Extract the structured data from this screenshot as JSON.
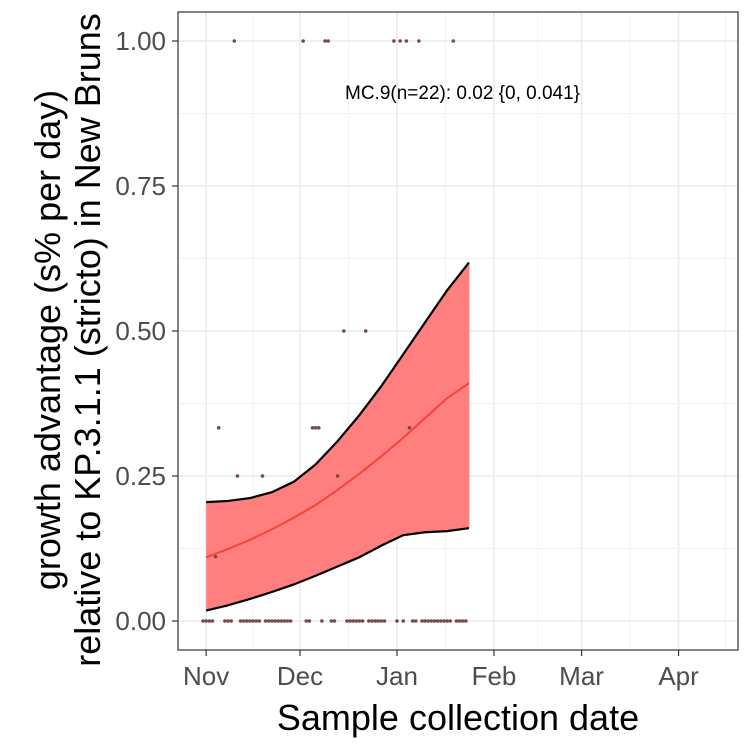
{
  "chart_data": {
    "type": "line",
    "title": "",
    "xlabel": "Sample collection date",
    "ylabel": "growth advantage (s% per day)",
    "ylabel_line2": "relative to KP.3.1.1 (stricto) in New Bruns",
    "x_ticks": [
      "Nov",
      "Dec",
      "Jan",
      "Feb",
      "Mar",
      "Apr"
    ],
    "y_ticks": [
      "0.00",
      "0.25",
      "0.50",
      "0.75",
      "1.00"
    ],
    "y_tick_values": [
      0,
      0.25,
      0.5,
      0.75,
      1.0
    ],
    "xlim": [
      "2024-10-23",
      "2025-04-20"
    ],
    "ylim": [
      -0.05,
      1.05
    ],
    "grid": true,
    "annotation": "MC.9(n=22): 0.02 {0, 0.041}",
    "series": [
      {
        "name": "MC.9",
        "color": "#f8766d",
        "x": [
          "2024-11-01",
          "2024-11-08",
          "2024-11-15",
          "2024-11-22",
          "2024-11-29",
          "2024-12-06",
          "2024-12-13",
          "2024-12-20",
          "2024-12-27",
          "2025-01-03",
          "2025-01-10",
          "2025-01-17",
          "2025-01-24"
        ],
        "fit": [
          0.11,
          0.124,
          0.14,
          0.158,
          0.178,
          0.2,
          0.226,
          0.254,
          0.284,
          0.316,
          0.35,
          0.384,
          0.41
        ],
        "lower": [
          0.018,
          0.027,
          0.038,
          0.05,
          0.063,
          0.078,
          0.094,
          0.11,
          0.13,
          0.148,
          0.153,
          0.155,
          0.16
        ],
        "upper": [
          0.205,
          0.207,
          0.212,
          0.222,
          0.24,
          0.27,
          0.31,
          0.355,
          0.405,
          0.46,
          0.515,
          0.57,
          0.618
        ]
      }
    ],
    "points": {
      "color": "#7a4a4a",
      "values": [
        {
          "x": "2024-11-10",
          "y": 1.0
        },
        {
          "x": "2024-12-02",
          "y": 1.0
        },
        {
          "x": "2024-12-09",
          "y": 1.0
        },
        {
          "x": "2024-12-10",
          "y": 1.0
        },
        {
          "x": "2024-12-31",
          "y": 1.0
        },
        {
          "x": "2025-01-02",
          "y": 1.0
        },
        {
          "x": "2025-01-04",
          "y": 1.0
        },
        {
          "x": "2025-01-08",
          "y": 1.0
        },
        {
          "x": "2025-01-19",
          "y": 1.0
        },
        {
          "x": "2024-12-15",
          "y": 0.5
        },
        {
          "x": "2024-12-22",
          "y": 0.5
        },
        {
          "x": "2024-11-05",
          "y": 0.333
        },
        {
          "x": "2024-12-05",
          "y": 0.333
        },
        {
          "x": "2024-12-06",
          "y": 0.333
        },
        {
          "x": "2024-12-07",
          "y": 0.333
        },
        {
          "x": "2025-01-05",
          "y": 0.333
        },
        {
          "x": "2024-11-11",
          "y": 0.25
        },
        {
          "x": "2024-11-19",
          "y": 0.25
        },
        {
          "x": "2024-12-13",
          "y": 0.25
        },
        {
          "x": "2024-11-04",
          "y": 0.111
        },
        {
          "x": "2024-10-31",
          "y": 0
        },
        {
          "x": "2024-11-01",
          "y": 0
        },
        {
          "x": "2024-11-02",
          "y": 0
        },
        {
          "x": "2024-11-03",
          "y": 0
        },
        {
          "x": "2024-11-07",
          "y": 0
        },
        {
          "x": "2024-11-08",
          "y": 0
        },
        {
          "x": "2024-11-09",
          "y": 0
        },
        {
          "x": "2024-11-12",
          "y": 0
        },
        {
          "x": "2024-11-13",
          "y": 0
        },
        {
          "x": "2024-11-14",
          "y": 0
        },
        {
          "x": "2024-11-15",
          "y": 0
        },
        {
          "x": "2024-11-16",
          "y": 0
        },
        {
          "x": "2024-11-17",
          "y": 0
        },
        {
          "x": "2024-11-18",
          "y": 0
        },
        {
          "x": "2024-11-20",
          "y": 0
        },
        {
          "x": "2024-11-21",
          "y": 0
        },
        {
          "x": "2024-11-22",
          "y": 0
        },
        {
          "x": "2024-11-23",
          "y": 0
        },
        {
          "x": "2024-11-24",
          "y": 0
        },
        {
          "x": "2024-11-25",
          "y": 0
        },
        {
          "x": "2024-11-26",
          "y": 0
        },
        {
          "x": "2024-11-27",
          "y": 0
        },
        {
          "x": "2024-11-28",
          "y": 0
        },
        {
          "x": "2024-12-03",
          "y": 0
        },
        {
          "x": "2024-12-04",
          "y": 0
        },
        {
          "x": "2024-12-08",
          "y": 0
        },
        {
          "x": "2024-12-11",
          "y": 0
        },
        {
          "x": "2024-12-12",
          "y": 0
        },
        {
          "x": "2024-12-16",
          "y": 0
        },
        {
          "x": "2024-12-17",
          "y": 0
        },
        {
          "x": "2024-12-18",
          "y": 0
        },
        {
          "x": "2024-12-19",
          "y": 0
        },
        {
          "x": "2024-12-20",
          "y": 0
        },
        {
          "x": "2024-12-21",
          "y": 0
        },
        {
          "x": "2024-12-23",
          "y": 0
        },
        {
          "x": "2024-12-24",
          "y": 0
        },
        {
          "x": "2024-12-25",
          "y": 0
        },
        {
          "x": "2024-12-26",
          "y": 0
        },
        {
          "x": "2024-12-27",
          "y": 0
        },
        {
          "x": "2024-12-28",
          "y": 0
        },
        {
          "x": "2025-01-01",
          "y": 0
        },
        {
          "x": "2025-01-03",
          "y": 0
        },
        {
          "x": "2025-01-06",
          "y": 0
        },
        {
          "x": "2025-01-07",
          "y": 0
        },
        {
          "x": "2025-01-09",
          "y": 0
        },
        {
          "x": "2025-01-10",
          "y": 0
        },
        {
          "x": "2025-01-11",
          "y": 0
        },
        {
          "x": "2025-01-12",
          "y": 0
        },
        {
          "x": "2025-01-13",
          "y": 0
        },
        {
          "x": "2025-01-14",
          "y": 0
        },
        {
          "x": "2025-01-15",
          "y": 0
        },
        {
          "x": "2025-01-16",
          "y": 0
        },
        {
          "x": "2025-01-17",
          "y": 0
        },
        {
          "x": "2025-01-18",
          "y": 0
        },
        {
          "x": "2025-01-20",
          "y": 0
        },
        {
          "x": "2025-01-21",
          "y": 0
        },
        {
          "x": "2025-01-22",
          "y": 0
        },
        {
          "x": "2025-01-23",
          "y": 0
        }
      ]
    }
  }
}
